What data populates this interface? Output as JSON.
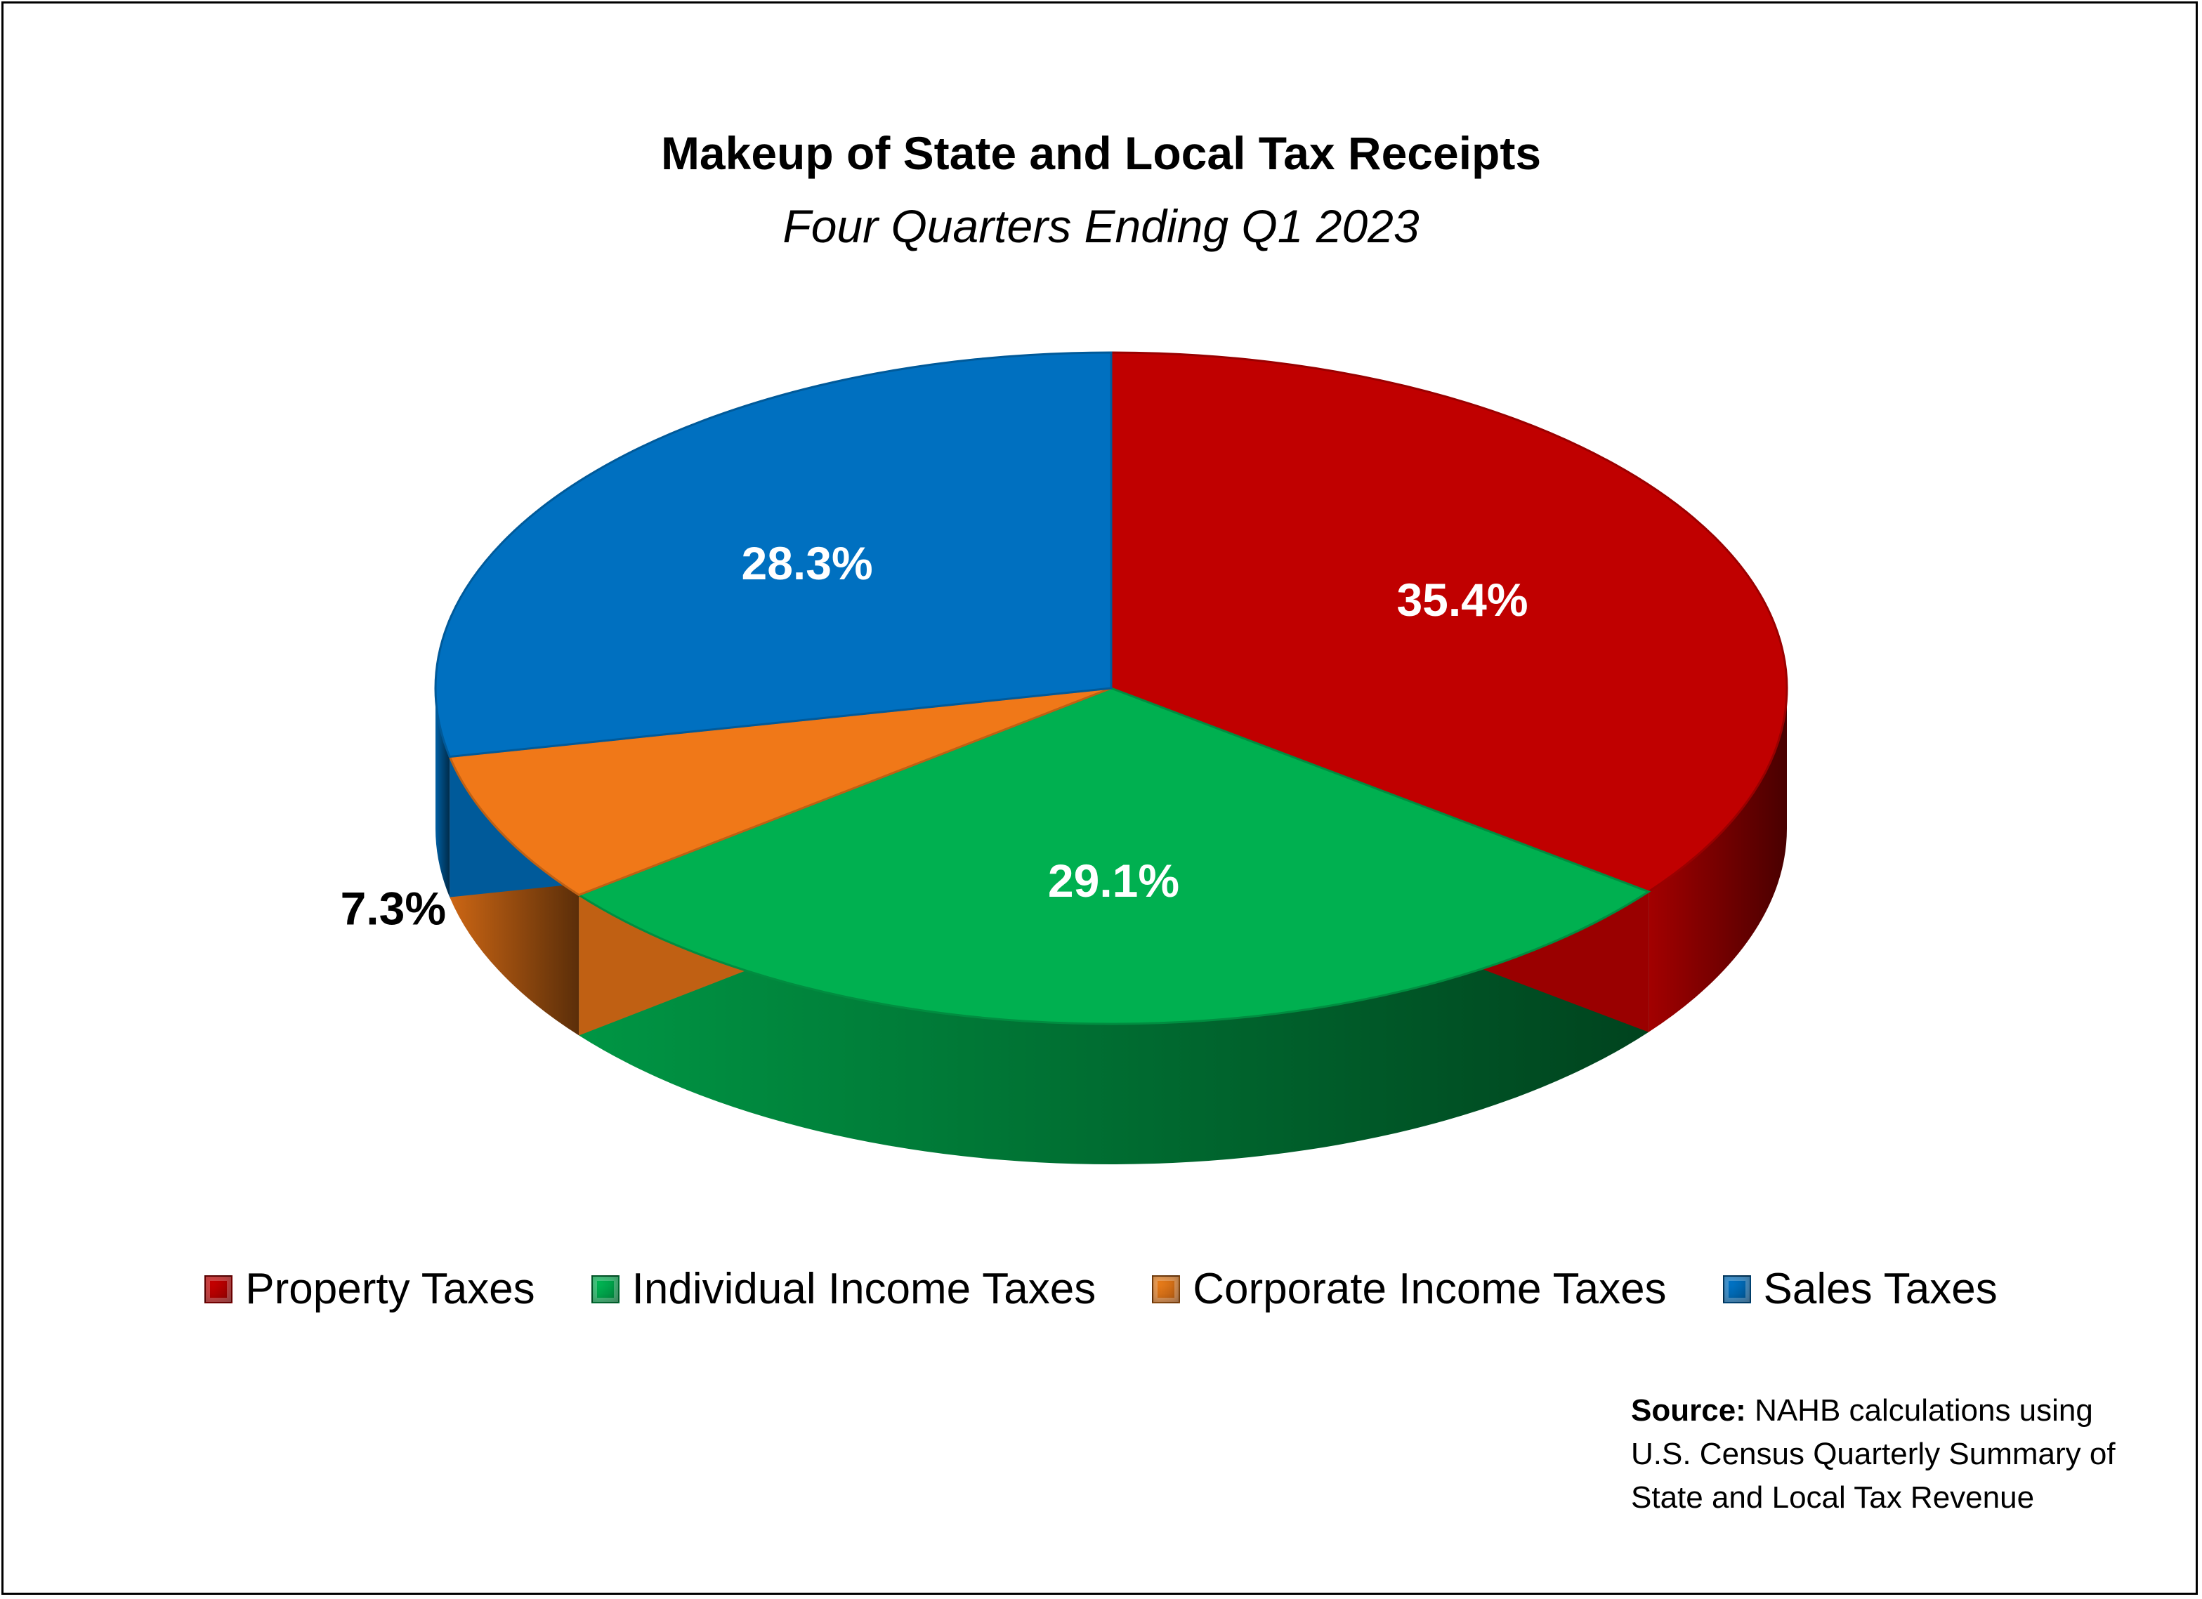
{
  "chart_data": {
    "type": "pie",
    "title": "Makeup of State and Local Tax Receipts",
    "subtitle": "Four Quarters Ending Q1 2023",
    "categories": [
      "Property Taxes",
      "Individual Income Taxes",
      "Corporate Income Taxes",
      "Sales Taxes"
    ],
    "values": [
      35.4,
      29.1,
      7.3,
      28.3
    ],
    "data_labels": [
      "35.4%",
      "29.1%",
      "7.3%",
      "28.3%"
    ],
    "colors": [
      "#C00000",
      "#00B050",
      "#F07818",
      "#0070C0"
    ],
    "legend_position": "bottom",
    "style": "3d"
  },
  "source": {
    "label": "Source:",
    "line1": "NAHB calculations using",
    "line2": "U.S. Census Quarterly Summary of",
    "line3": "State and Local Tax Revenue"
  }
}
